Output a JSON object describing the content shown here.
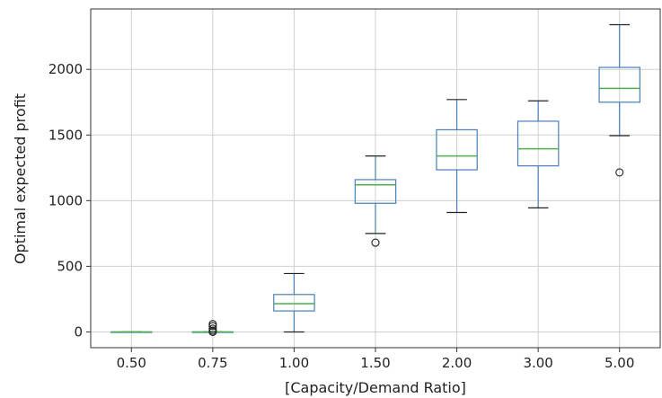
{
  "chart_data": {
    "type": "box",
    "title": "",
    "xlabel": "[Capacity/Demand Ratio]",
    "ylabel": "Optimal expected profit",
    "categories": [
      "0.50",
      "0.75",
      "1.00",
      "1.50",
      "2.00",
      "3.00",
      "5.00"
    ],
    "yticks": [
      0,
      500,
      1000,
      1500,
      2000
    ],
    "ylim": [
      -120,
      2460
    ],
    "grid": true,
    "colors": {
      "box": "#4a7fb5",
      "median": "#4caf50",
      "outlier": "#222222",
      "whisker": "#222222",
      "grid": "#cfcfcf",
      "axis": "#333333"
    },
    "boxes": [
      {
        "category": "0.50",
        "whisker_low": 0,
        "q1": 0,
        "median": 0,
        "q3": 0,
        "whisker_high": 0,
        "outliers": []
      },
      {
        "category": "0.75",
        "whisker_low": 0,
        "q1": 0,
        "median": 0,
        "q3": 0,
        "whisker_high": 0,
        "outliers": [
          0,
          10,
          25,
          45,
          60
        ]
      },
      {
        "category": "1.00",
        "whisker_low": 0,
        "q1": 160,
        "median": 215,
        "q3": 285,
        "whisker_high": 445,
        "outliers": []
      },
      {
        "category": "1.50",
        "whisker_low": 750,
        "q1": 980,
        "median": 1120,
        "q3": 1160,
        "whisker_high": 1340,
        "outliers": [
          680
        ]
      },
      {
        "category": "2.00",
        "whisker_low": 910,
        "q1": 1235,
        "median": 1340,
        "q3": 1540,
        "whisker_high": 1770,
        "outliers": []
      },
      {
        "category": "3.00",
        "whisker_low": 945,
        "q1": 1265,
        "median": 1395,
        "q3": 1605,
        "whisker_high": 1760,
        "outliers": []
      },
      {
        "category": "5.00",
        "whisker_low": 1495,
        "q1": 1750,
        "median": 1855,
        "q3": 2015,
        "whisker_high": 2340,
        "outliers": [
          1215
        ]
      }
    ]
  }
}
